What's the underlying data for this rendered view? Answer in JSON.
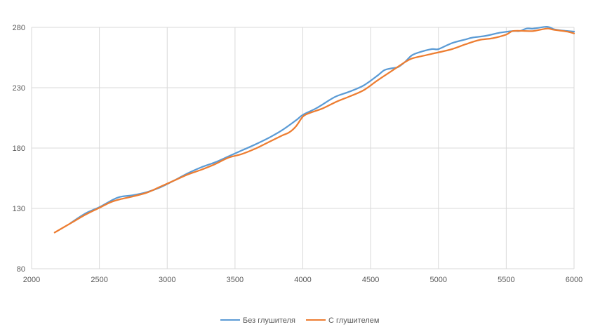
{
  "chart_data": {
    "type": "line",
    "title": "",
    "xlabel": "",
    "ylabel": "",
    "xlim": [
      2000,
      6000
    ],
    "ylim": [
      80,
      280
    ],
    "x_ticks": [
      "2000",
      "2500",
      "3000",
      "3500",
      "4000",
      "4500",
      "5000",
      "5500",
      "6000"
    ],
    "y_ticks": [
      "80",
      "130",
      "180",
      "230",
      "280"
    ],
    "grid": true,
    "legend_position": "bottom",
    "series": [
      {
        "name": "Без глушителя",
        "color": "#5B9BD5",
        "points": [
          [
            2290,
            118
          ],
          [
            2400,
            126
          ],
          [
            2500,
            131
          ],
          [
            2580,
            136
          ],
          [
            2650,
            139.5
          ],
          [
            2750,
            141
          ],
          [
            2850,
            143.5
          ],
          [
            2950,
            147.5
          ],
          [
            3050,
            153
          ],
          [
            3150,
            159
          ],
          [
            3250,
            164
          ],
          [
            3350,
            168
          ],
          [
            3450,
            173
          ],
          [
            3550,
            178
          ],
          [
            3650,
            183
          ],
          [
            3750,
            188.5
          ],
          [
            3850,
            195
          ],
          [
            3950,
            203
          ],
          [
            4000,
            207.5
          ],
          [
            4100,
            213
          ],
          [
            4200,
            220
          ],
          [
            4250,
            223
          ],
          [
            4350,
            227
          ],
          [
            4450,
            232
          ],
          [
            4550,
            240
          ],
          [
            4600,
            244.5
          ],
          [
            4650,
            246
          ],
          [
            4700,
            247
          ],
          [
            4750,
            251
          ],
          [
            4800,
            256.5
          ],
          [
            4850,
            259
          ],
          [
            4950,
            262
          ],
          [
            5000,
            262
          ],
          [
            5100,
            267
          ],
          [
            5200,
            270
          ],
          [
            5250,
            271.5
          ],
          [
            5350,
            273
          ],
          [
            5450,
            275.5
          ],
          [
            5550,
            277
          ],
          [
            5600,
            277
          ],
          [
            5650,
            279
          ],
          [
            5700,
            279
          ],
          [
            5800,
            280.5
          ],
          [
            5850,
            278.5
          ],
          [
            5900,
            277.5
          ],
          [
            6000,
            276.5
          ]
        ]
      },
      {
        "name": "С глушителем",
        "color": "#ED7D31",
        "points": [
          [
            2170,
            110
          ],
          [
            2300,
            118.5
          ],
          [
            2400,
            125
          ],
          [
            2500,
            130.5
          ],
          [
            2580,
            135
          ],
          [
            2650,
            137.5
          ],
          [
            2750,
            140
          ],
          [
            2850,
            143
          ],
          [
            2950,
            148
          ],
          [
            3050,
            153
          ],
          [
            3150,
            158
          ],
          [
            3250,
            162
          ],
          [
            3350,
            166.5
          ],
          [
            3450,
            172
          ],
          [
            3550,
            175
          ],
          [
            3650,
            179.5
          ],
          [
            3750,
            185
          ],
          [
            3850,
            190.5
          ],
          [
            3900,
            193
          ],
          [
            3950,
            198
          ],
          [
            4000,
            206
          ],
          [
            4050,
            209
          ],
          [
            4150,
            213
          ],
          [
            4250,
            218.5
          ],
          [
            4350,
            223
          ],
          [
            4450,
            228
          ],
          [
            4550,
            236
          ],
          [
            4650,
            243.5
          ],
          [
            4750,
            251
          ],
          [
            4800,
            254
          ],
          [
            4850,
            255.5
          ],
          [
            4950,
            258
          ],
          [
            5100,
            262
          ],
          [
            5200,
            266
          ],
          [
            5300,
            269.5
          ],
          [
            5400,
            271
          ],
          [
            5500,
            274
          ],
          [
            5550,
            277
          ],
          [
            5650,
            277
          ],
          [
            5700,
            277
          ],
          [
            5800,
            279
          ],
          [
            5850,
            278
          ],
          [
            5950,
            276.5
          ],
          [
            6000,
            275
          ]
        ]
      }
    ]
  }
}
